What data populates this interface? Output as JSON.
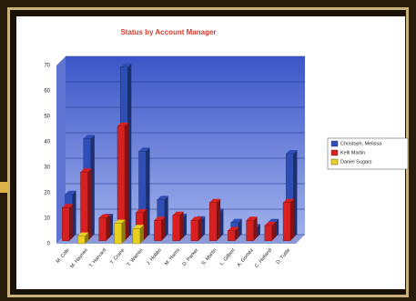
{
  "chart_data": {
    "type": "bar3d",
    "title": "Status by Account Manager",
    "categories": [
      "M. Cole",
      "M. Haynes",
      "T. Harvard",
      "T. Crane",
      "T. Warren",
      "J. Hobbs",
      "M. Harris",
      "D. Parker",
      "S. Martin",
      "L. Gilbert",
      "A. Gomez",
      "C. Holland",
      "D. Tuttle"
    ],
    "series": [
      {
        "name": "Christoph, Melissa",
        "color": "#2f4fb8",
        "values": [
          17,
          39,
          8,
          67,
          34,
          15,
          8,
          7,
          10,
          6,
          4,
          6,
          33
        ]
      },
      {
        "name": "Kelli Martin",
        "color": "#d82020",
        "values": [
          13,
          27,
          9,
          45,
          11,
          8,
          10,
          8,
          15,
          4,
          8,
          6,
          15
        ]
      },
      {
        "name": "Daniel Sugars",
        "color": "#e8d020",
        "values": [
          0,
          3,
          0,
          8,
          6,
          0,
          0,
          0,
          0,
          0,
          0,
          0,
          0
        ]
      }
    ],
    "ylim": [
      0,
      70
    ],
    "yticks": [
      0,
      10,
      20,
      30,
      40,
      50,
      60,
      70
    ],
    "grid": true,
    "legend": "right"
  }
}
